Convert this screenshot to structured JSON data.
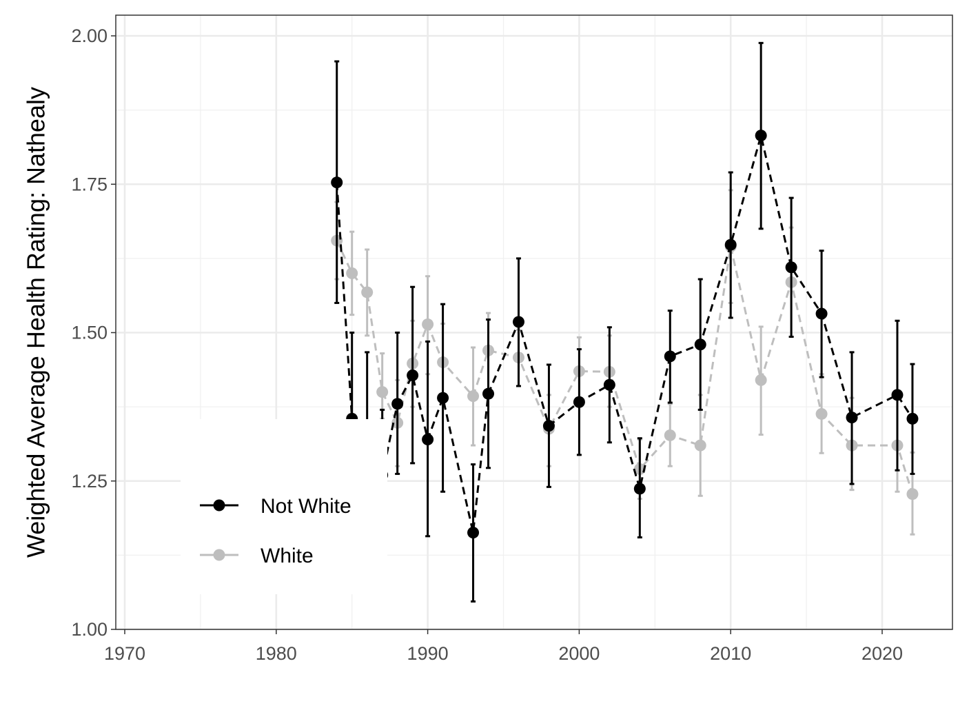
{
  "chart_data": {
    "type": "line",
    "title": "",
    "xlabel": "",
    "ylabel": "Weighted Average Health Rating: Nathealy",
    "xlim": [
      1969.3,
      1924.7
    ],
    "ylim": [
      1.0,
      2.03
    ],
    "x_ticks": [
      1970,
      1980,
      1990,
      2000,
      2010,
      2020
    ],
    "x_tick_labels": [
      "1970",
      "1980",
      "1990",
      "2000",
      "2010",
      "2020"
    ],
    "y_ticks": [
      1.0,
      1.25,
      1.5,
      1.75,
      2.0
    ],
    "y_tick_labels": [
      "1.00",
      "1.25",
      "1.50",
      "1.75",
      "2.00"
    ],
    "grid": true,
    "legend_position": "bottom-left",
    "series": [
      {
        "name": "White",
        "color": "#bebebe",
        "line_style": "dashed",
        "points": [
          {
            "x": 1984,
            "y": 1.655,
            "lo": 1.59,
            "hi": 1.72
          },
          {
            "x": 1985,
            "y": 1.6,
            "lo": 1.53,
            "hi": 1.67
          },
          {
            "x": 1986,
            "y": 1.568,
            "lo": 1.495,
            "hi": 1.64
          },
          {
            "x": 1987,
            "y": 1.4,
            "lo": 1.355,
            "hi": 1.465
          },
          {
            "x": 1988,
            "y": 1.348,
            "lo": 1.275,
            "hi": 1.42
          },
          {
            "x": 1989,
            "y": 1.448,
            "lo": 1.375,
            "hi": 1.52
          },
          {
            "x": 1990,
            "y": 1.514,
            "lo": 1.43,
            "hi": 1.595
          },
          {
            "x": 1991,
            "y": 1.45,
            "lo": 1.385,
            "hi": 1.515
          },
          {
            "x": 1993,
            "y": 1.393,
            "lo": 1.31,
            "hi": 1.475
          },
          {
            "x": 1994,
            "y": 1.47,
            "lo": 1.405,
            "hi": 1.533
          },
          {
            "x": 1996,
            "y": 1.458,
            "lo": 1.41,
            "hi": 1.505
          },
          {
            "x": 1998,
            "y": 1.338,
            "lo": 1.275,
            "hi": 1.395
          },
          {
            "x": 2000,
            "y": 1.435,
            "lo": 1.38,
            "hi": 1.492
          },
          {
            "x": 2002,
            "y": 1.434,
            "lo": 1.375,
            "hi": 1.495
          },
          {
            "x": 2004,
            "y": 1.27,
            "lo": 1.22,
            "hi": 1.32
          },
          {
            "x": 2006,
            "y": 1.327,
            "lo": 1.275,
            "hi": 1.38
          },
          {
            "x": 2008,
            "y": 1.31,
            "lo": 1.225,
            "hi": 1.395
          },
          {
            "x": 2010,
            "y": 1.645,
            "lo": 1.55,
            "hi": 1.74
          },
          {
            "x": 2012,
            "y": 1.42,
            "lo": 1.328,
            "hi": 1.51
          },
          {
            "x": 2014,
            "y": 1.585,
            "lo": 1.493,
            "hi": 1.677
          },
          {
            "x": 2016,
            "y": 1.363,
            "lo": 1.297,
            "hi": 1.43
          },
          {
            "x": 2018,
            "y": 1.31,
            "lo": 1.235,
            "hi": 1.39
          },
          {
            "x": 2021,
            "y": 1.31,
            "lo": 1.232,
            "hi": 1.39
          },
          {
            "x": 2022,
            "y": 1.228,
            "lo": 1.16,
            "hi": 1.298
          }
        ]
      },
      {
        "name": "Not White",
        "color": "#000000",
        "line_style": "dashed",
        "points": [
          {
            "x": 1984,
            "y": 1.753,
            "lo": 1.55,
            "hi": 1.957
          },
          {
            "x": 1985,
            "y": 1.355,
            "lo": 1.21,
            "hi": 1.5
          },
          {
            "x": 1986,
            "y": 1.325,
            "lo": 1.18,
            "hi": 1.467
          },
          {
            "x": 1987,
            "y": 1.26,
            "lo": 1.15,
            "hi": 1.37
          },
          {
            "x": 1988,
            "y": 1.38,
            "lo": 1.262,
            "hi": 1.5
          },
          {
            "x": 1989,
            "y": 1.428,
            "lo": 1.28,
            "hi": 1.577
          },
          {
            "x": 1990,
            "y": 1.32,
            "lo": 1.157,
            "hi": 1.485
          },
          {
            "x": 1991,
            "y": 1.39,
            "lo": 1.232,
            "hi": 1.548
          },
          {
            "x": 1993,
            "y": 1.163,
            "lo": 1.047,
            "hi": 1.278
          },
          {
            "x": 1994,
            "y": 1.397,
            "lo": 1.272,
            "hi": 1.522
          },
          {
            "x": 1996,
            "y": 1.518,
            "lo": 1.41,
            "hi": 1.625
          },
          {
            "x": 1998,
            "y": 1.343,
            "lo": 1.24,
            "hi": 1.446
          },
          {
            "x": 2000,
            "y": 1.383,
            "lo": 1.294,
            "hi": 1.472
          },
          {
            "x": 2002,
            "y": 1.412,
            "lo": 1.315,
            "hi": 1.509
          },
          {
            "x": 2004,
            "y": 1.237,
            "lo": 1.155,
            "hi": 1.322
          },
          {
            "x": 2006,
            "y": 1.46,
            "lo": 1.382,
            "hi": 1.537
          },
          {
            "x": 2008,
            "y": 1.48,
            "lo": 1.37,
            "hi": 1.59
          },
          {
            "x": 2010,
            "y": 1.648,
            "lo": 1.525,
            "hi": 1.77
          },
          {
            "x": 2012,
            "y": 1.832,
            "lo": 1.675,
            "hi": 1.988
          },
          {
            "x": 2014,
            "y": 1.61,
            "lo": 1.493,
            "hi": 1.727
          },
          {
            "x": 2016,
            "y": 1.532,
            "lo": 1.425,
            "hi": 1.638
          },
          {
            "x": 2018,
            "y": 1.357,
            "lo": 1.245,
            "hi": 1.467
          },
          {
            "x": 2021,
            "y": 1.395,
            "lo": 1.268,
            "hi": 1.52
          },
          {
            "x": 2022,
            "y": 1.355,
            "lo": 1.262,
            "hi": 1.447
          }
        ]
      }
    ],
    "legend": [
      {
        "label": "Not White",
        "color": "#000000"
      },
      {
        "label": "White",
        "color": "#bebebe"
      }
    ]
  }
}
